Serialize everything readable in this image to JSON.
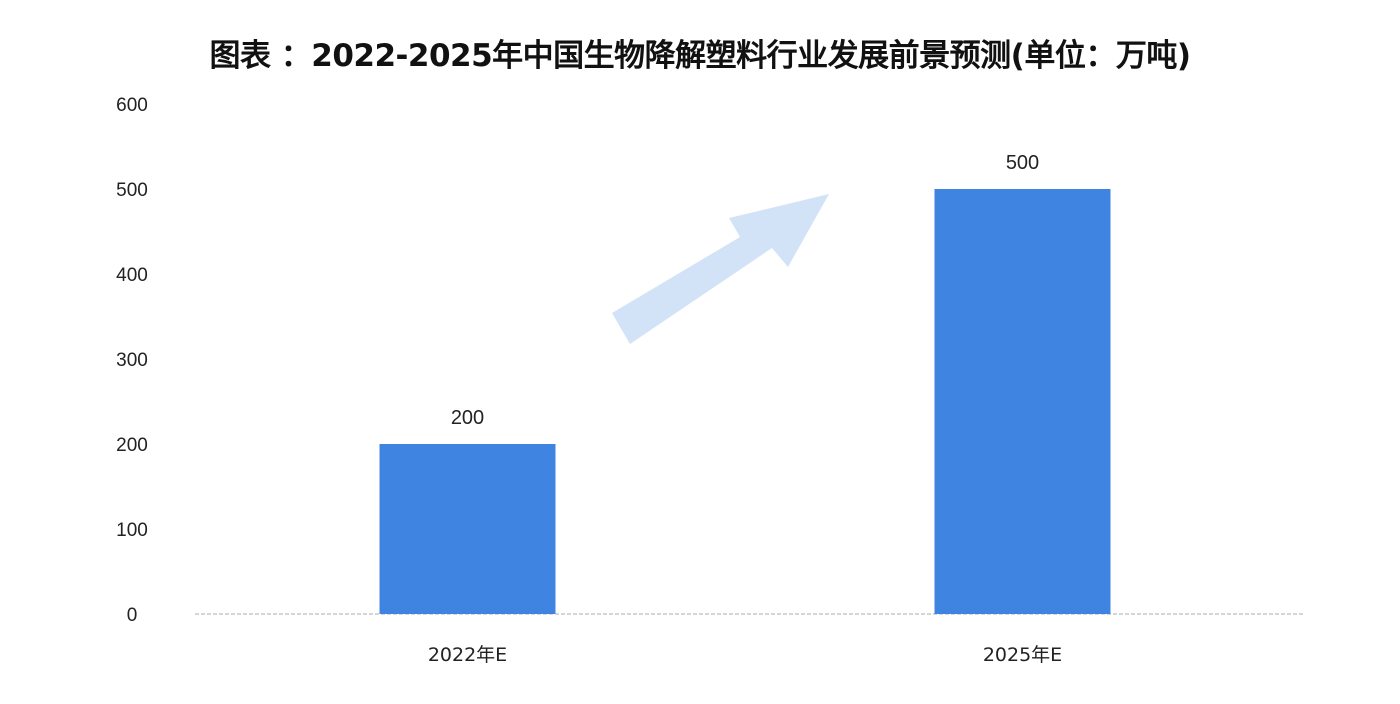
{
  "chart_data": {
    "type": "bar",
    "title": "图表 ：2022-2025年中国生物降解塑料行业发展前景预测(单位：万吨)",
    "categories": [
      "2022年E",
      "2025年E"
    ],
    "values": [
      200,
      500
    ],
    "data_labels": [
      "200",
      "500"
    ],
    "xlabel": "",
    "ylabel": "",
    "ylim": [
      0,
      600
    ],
    "yticks": [
      "0",
      "100",
      "200",
      "300",
      "400",
      "500",
      "600"
    ],
    "grid": false,
    "legend": "none",
    "bar_color": "#3f84e0",
    "arrow_color": "#d3e3f7"
  }
}
